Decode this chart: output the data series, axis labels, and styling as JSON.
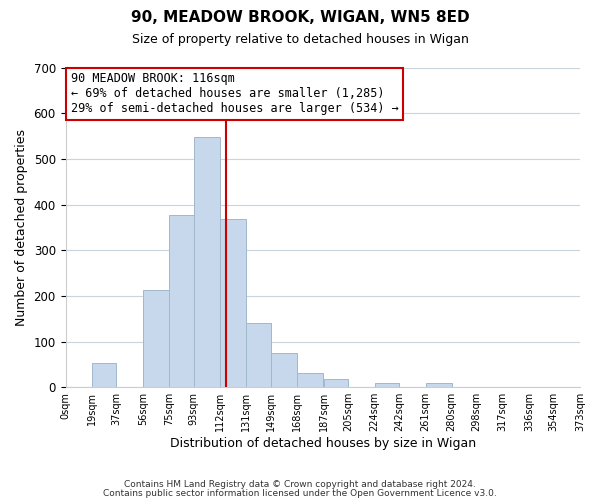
{
  "title": "90, MEADOW BROOK, WIGAN, WN5 8ED",
  "subtitle": "Size of property relative to detached houses in Wigan",
  "xlabel": "Distribution of detached houses by size in Wigan",
  "ylabel": "Number of detached properties",
  "bar_color": "#c8d8ec",
  "bar_edge_color": "#a0b8cc",
  "bar_left_edges": [
    0,
    19,
    37,
    56,
    75,
    93,
    112,
    131,
    149,
    168,
    187,
    205,
    224,
    242,
    261,
    280,
    298,
    317,
    336,
    354
  ],
  "bar_widths": [
    19,
    18,
    19,
    19,
    18,
    19,
    19,
    18,
    19,
    19,
    18,
    19,
    18,
    19,
    19,
    18,
    19,
    19,
    18,
    19
  ],
  "bar_heights": [
    0,
    53,
    0,
    212,
    376,
    547,
    369,
    141,
    75,
    32,
    19,
    0,
    9,
    0,
    9,
    0,
    0,
    0,
    0,
    0
  ],
  "tick_labels": [
    "0sqm",
    "19sqm",
    "37sqm",
    "56sqm",
    "75sqm",
    "93sqm",
    "112sqm",
    "131sqm",
    "149sqm",
    "168sqm",
    "187sqm",
    "205sqm",
    "224sqm",
    "242sqm",
    "261sqm",
    "280sqm",
    "298sqm",
    "317sqm",
    "336sqm",
    "354sqm",
    "373sqm"
  ],
  "xlim": [
    0,
    373
  ],
  "ylim": [
    0,
    700
  ],
  "yticks": [
    0,
    100,
    200,
    300,
    400,
    500,
    600,
    700
  ],
  "vline_x": 116,
  "vline_color": "#cc0000",
  "annotation_line1": "90 MEADOW BROOK: 116sqm",
  "annotation_line2": "← 69% of detached houses are smaller (1,285)",
  "annotation_line3": "29% of semi-detached houses are larger (534) →",
  "footnote1": "Contains HM Land Registry data © Crown copyright and database right 2024.",
  "footnote2": "Contains public sector information licensed under the Open Government Licence v3.0.",
  "grid_color": "#c8d4de",
  "background_color": "#ffffff",
  "plot_bg_color": "#ffffff"
}
